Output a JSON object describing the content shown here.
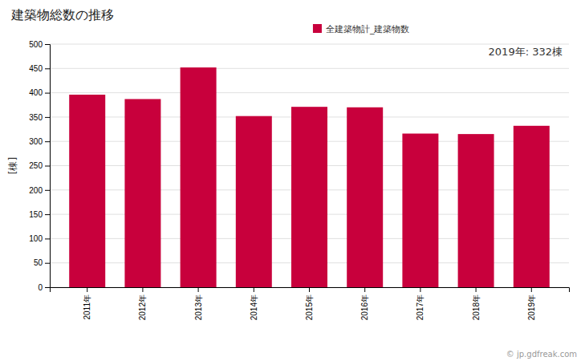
{
  "chart_data": {
    "type": "bar",
    "title": "建築物総数の推移",
    "ylabel": "[棟]",
    "annotations": [
      "2019年: 332棟",
      "© jp.gdfreak.com"
    ],
    "categories": [
      "2011年",
      "2012年",
      "2013年",
      "2014年",
      "2015年",
      "2016年",
      "2017年",
      "2018年",
      "2019年"
    ],
    "series": [
      {
        "name": "全建築物計_建築物数",
        "color": "#c8003c",
        "values": [
          396,
          387,
          452,
          352,
          371,
          370,
          316,
          315,
          332
        ]
      }
    ],
    "ylim": [
      0,
      500
    ],
    "yticks": [
      0,
      50,
      100,
      150,
      200,
      250,
      300,
      350,
      400,
      450,
      500
    ],
    "grid": true,
    "legend": "top"
  }
}
